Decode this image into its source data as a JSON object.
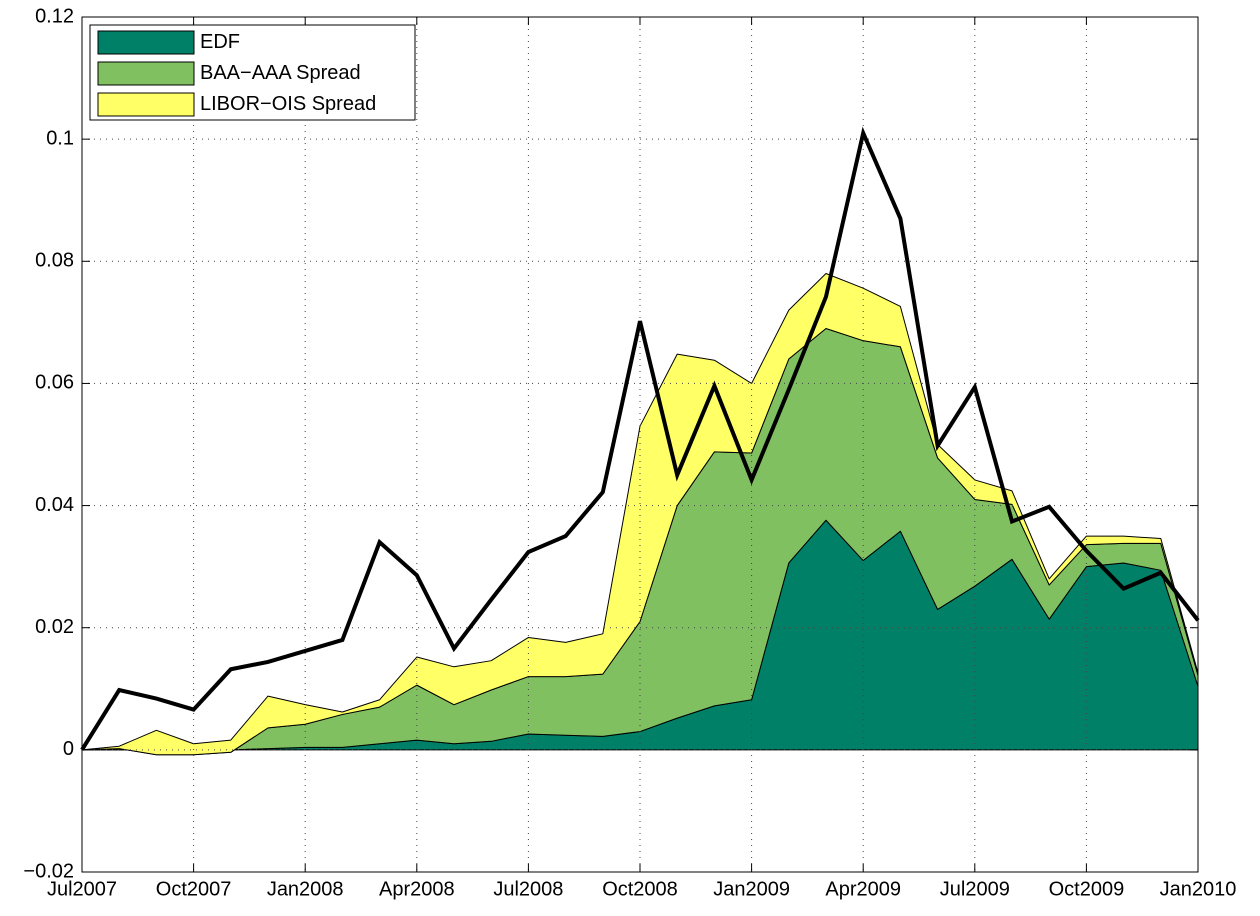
{
  "chart_data": {
    "type": "stacked-area",
    "categories": [
      "Jul2007",
      null,
      null,
      "Oct2007",
      null,
      null,
      "Jan2008",
      null,
      null,
      "Apr2008",
      null,
      null,
      "Jul2008",
      null,
      null,
      "Oct2008",
      null,
      null,
      "Jan2009",
      null,
      null,
      "Apr2009",
      null,
      null,
      "Jul2009",
      null,
      null,
      "Oct2009",
      null,
      null,
      "Jan2010"
    ],
    "series": [
      {
        "name": "EDF",
        "color": "#008066",
        "values": [
          0,
          0,
          0,
          0,
          0,
          0.0002,
          0.0004,
          0.0004,
          0.001,
          0.0016,
          0.001,
          0.0014,
          0.0026,
          0.0024,
          0.0022,
          0.003,
          0.0052,
          0.0072,
          0.0082,
          0.0306,
          0.0376,
          0.031,
          0.0358,
          0.023,
          0.0268,
          0.0312,
          0.0214,
          0.03,
          0.0306,
          0.0294,
          0.0104
        ]
      },
      {
        "name": "BAA−AAA Spread",
        "color": "#80c060",
        "values": [
          0,
          0.0002,
          -0.0008,
          -0.0008,
          -0.0004,
          0.0034,
          0.0038,
          0.0054,
          0.006,
          0.009,
          0.0064,
          0.0084,
          0.0094,
          0.0096,
          0.0102,
          0.018,
          0.0348,
          0.0416,
          0.0404,
          0.0334,
          0.0314,
          0.036,
          0.0302,
          0.0248,
          0.0142,
          0.009,
          0.0056,
          0.0036,
          0.0032,
          0.0044,
          0.0018
        ]
      },
      {
        "name": "LIBOR−OIS Spread",
        "color": "#ffff66",
        "values": [
          0,
          0.0004,
          0.004,
          0.0018,
          0.002,
          0.0052,
          0.0032,
          0.0004,
          0.0012,
          0.0046,
          0.0062,
          0.0048,
          0.0064,
          0.0056,
          0.0066,
          0.032,
          0.0248,
          0.015,
          0.0114,
          0.008,
          0.009,
          0.0086,
          0.0066,
          0.0022,
          0.0032,
          0.0022,
          0.001,
          0.0014,
          0.0012,
          0.0008,
          0.0004
        ]
      }
    ],
    "line": {
      "color": "#000000",
      "values": [
        0,
        0.0098,
        0.0084,
        0.0066,
        0.0132,
        0.0144,
        0.0162,
        0.018,
        0.034,
        0.0286,
        0.0166,
        0.0246,
        0.0324,
        0.035,
        0.0422,
        0.0702,
        0.045,
        0.0596,
        0.0442,
        0.059,
        0.0742,
        0.101,
        0.087,
        0.0498,
        0.0594,
        0.0374,
        0.0398,
        0.0326,
        0.0264,
        0.029,
        0.0212
      ]
    },
    "ylim": [
      -0.02,
      0.12
    ],
    "yticks": [
      {
        "value": -0.02,
        "label": "−0.02"
      },
      0,
      0.02,
      0.04,
      0.06,
      0.08,
      0.1,
      0.12
    ],
    "grid": true,
    "legend": "upper-left"
  }
}
